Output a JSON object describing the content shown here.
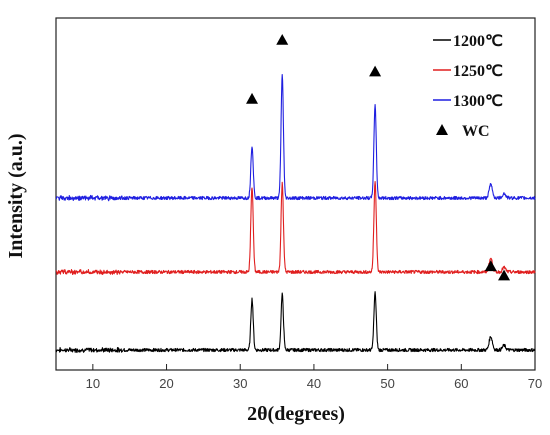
{
  "chart_data": {
    "type": "line",
    "xlabel": "2θ(degrees)",
    "ylabel": "Intensity (a.u.)",
    "xlim": [
      5,
      70
    ],
    "x_ticks": [
      10,
      20,
      30,
      40,
      50,
      60,
      70
    ],
    "y_ticks_shown": false,
    "grid": false,
    "legend_position": "top-right",
    "marker_legend": "WC",
    "series": [
      {
        "name": "1200℃",
        "color": "#000000",
        "stack_offset": 0,
        "peaks": [
          {
            "x": 31.6,
            "height": 0.34
          },
          {
            "x": 35.7,
            "height": 0.37
          },
          {
            "x": 48.3,
            "height": 0.38
          },
          {
            "x": 64.0,
            "height": 0.09
          },
          {
            "x": 65.8,
            "height": 0.03
          }
        ]
      },
      {
        "name": "1250℃",
        "color": "#e01f1f",
        "stack_offset": 1,
        "peaks": [
          {
            "x": 31.6,
            "height": 0.57
          },
          {
            "x": 35.7,
            "height": 0.59
          },
          {
            "x": 48.3,
            "height": 0.61
          },
          {
            "x": 64.0,
            "height": 0.09
          },
          {
            "x": 65.8,
            "height": 0.03
          }
        ]
      },
      {
        "name": "1300℃",
        "color": "#1f1fe0",
        "stack_offset": 2,
        "peaks": [
          {
            "x": 31.6,
            "height": 0.35
          },
          {
            "x": 35.7,
            "height": 0.82
          },
          {
            "x": 48.3,
            "height": 0.62
          },
          {
            "x": 64.0,
            "height": 0.09
          },
          {
            "x": 65.8,
            "height": 0.03
          }
        ]
      }
    ],
    "wc_markers": [
      {
        "x": 31.6,
        "y": 4.05
      },
      {
        "x": 35.7,
        "y": 5.0
      },
      {
        "x": 48.3,
        "y": 4.49
      },
      {
        "x": 64.0,
        "y": 1.35
      },
      {
        "x": 65.8,
        "y": 1.2
      }
    ]
  }
}
